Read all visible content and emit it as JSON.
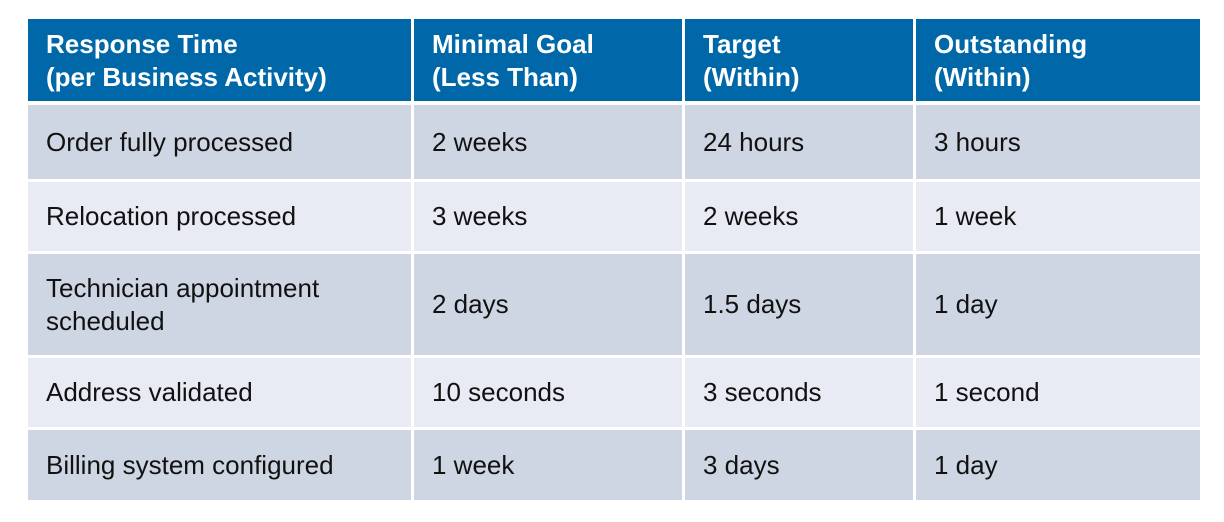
{
  "table": {
    "headers": [
      [
        "Response Time",
        "(per Business Activity)"
      ],
      [
        "Minimal Goal",
        "(Less Than)"
      ],
      [
        "Target",
        "(Within)"
      ],
      [
        "Outstanding",
        "(Within)"
      ]
    ],
    "rows": [
      [
        [
          "Order fully processed"
        ],
        [
          "2 weeks"
        ],
        [
          "24 hours"
        ],
        [
          "3 hours"
        ]
      ],
      [
        [
          "Relocation processed"
        ],
        [
          "3 weeks"
        ],
        [
          "2 weeks"
        ],
        [
          "1 week"
        ]
      ],
      [
        [
          "Technician appointment",
          "scheduled"
        ],
        [
          "2 days"
        ],
        [
          "1.5 days"
        ],
        [
          "1 day"
        ]
      ],
      [
        [
          "Address validated"
        ],
        [
          "10 seconds"
        ],
        [
          "3 seconds"
        ],
        [
          "1 second"
        ]
      ],
      [
        [
          "Billing system configured"
        ],
        [
          "1 week"
        ],
        [
          "3 days"
        ],
        [
          "1 day"
        ]
      ]
    ],
    "colors": {
      "header_bg": "#0068a8",
      "row_odd_bg": "#cfd6e3",
      "row_even_bg": "#e8ebf3"
    }
  }
}
